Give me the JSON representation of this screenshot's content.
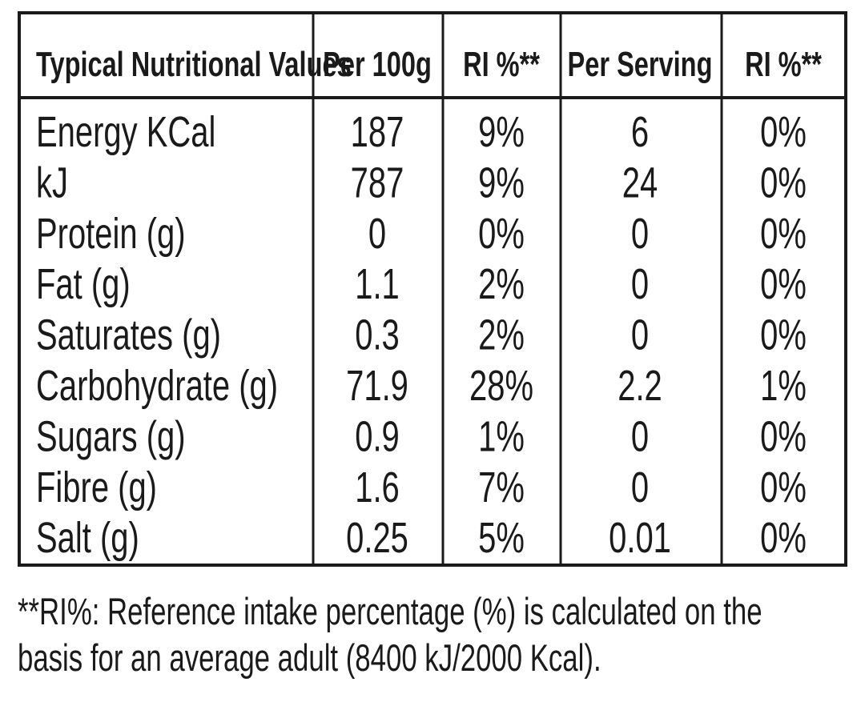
{
  "table": {
    "header": [
      "Typical Nutritional Values",
      "Per 100g",
      "RI %**",
      "Per Serving",
      "RI %**"
    ],
    "rows": [
      [
        "Energy KCal",
        "187",
        "9%",
        "6",
        "0%"
      ],
      [
        "kJ",
        "787",
        "9%",
        "24",
        "0%"
      ],
      [
        "Protein (g)",
        "0",
        "0%",
        "0",
        "0%"
      ],
      [
        "Fat (g)",
        "1.1",
        "2%",
        "0",
        "0%"
      ],
      [
        "Saturates (g)",
        "0.3",
        "2%",
        "0",
        "0%"
      ],
      [
        "Carbohydrate (g)",
        "71.9",
        "28%",
        "2.2",
        "1%"
      ],
      [
        "Sugars (g)",
        "0.9",
        "1%",
        "0",
        "0%"
      ],
      [
        "Fibre (g)",
        "1.6",
        "7%",
        "0",
        "0%"
      ],
      [
        "Salt (g)",
        "0.25",
        "5%",
        "0.01",
        "0%"
      ]
    ]
  },
  "footnote": [
    "**RI%: Reference intake percentage (%) is calculated on the",
    "basis for an average adult (8400 kJ/2000 Kcal)."
  ]
}
